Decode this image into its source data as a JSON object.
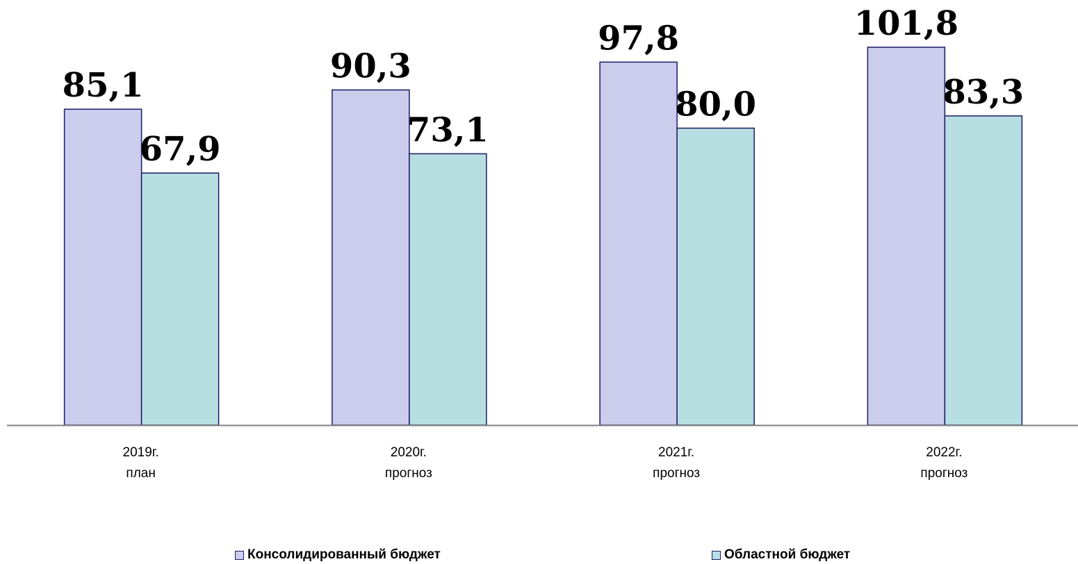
{
  "chart_data": {
    "type": "bar",
    "title": "",
    "xlabel": "",
    "ylabel": "",
    "categories": [
      [
        "2019г.",
        "план"
      ],
      [
        "2020г.",
        "прогноз"
      ],
      [
        "2021г.",
        "прогноз"
      ],
      [
        "2022г.",
        "прогноз"
      ]
    ],
    "series": [
      {
        "name": "Консолидированный бюджет",
        "values": [
          85.1,
          90.3,
          97.8,
          101.8
        ],
        "labels": [
          "85,1",
          "90,3",
          "97,8",
          "101,8"
        ],
        "color": "#cccced"
      },
      {
        "name": "Областной бюджет",
        "values": [
          67.9,
          73.1,
          80.0,
          83.3
        ],
        "labels": [
          "67,9",
          "73,1",
          "80,0",
          "83,3"
        ],
        "color": "#b7dfe1"
      }
    ],
    "ylim": [
      0,
      101.8
    ],
    "grid": false,
    "legend": "bottom",
    "colors": {
      "bar_border": "#1a1a66",
      "axis": "#808080"
    }
  }
}
